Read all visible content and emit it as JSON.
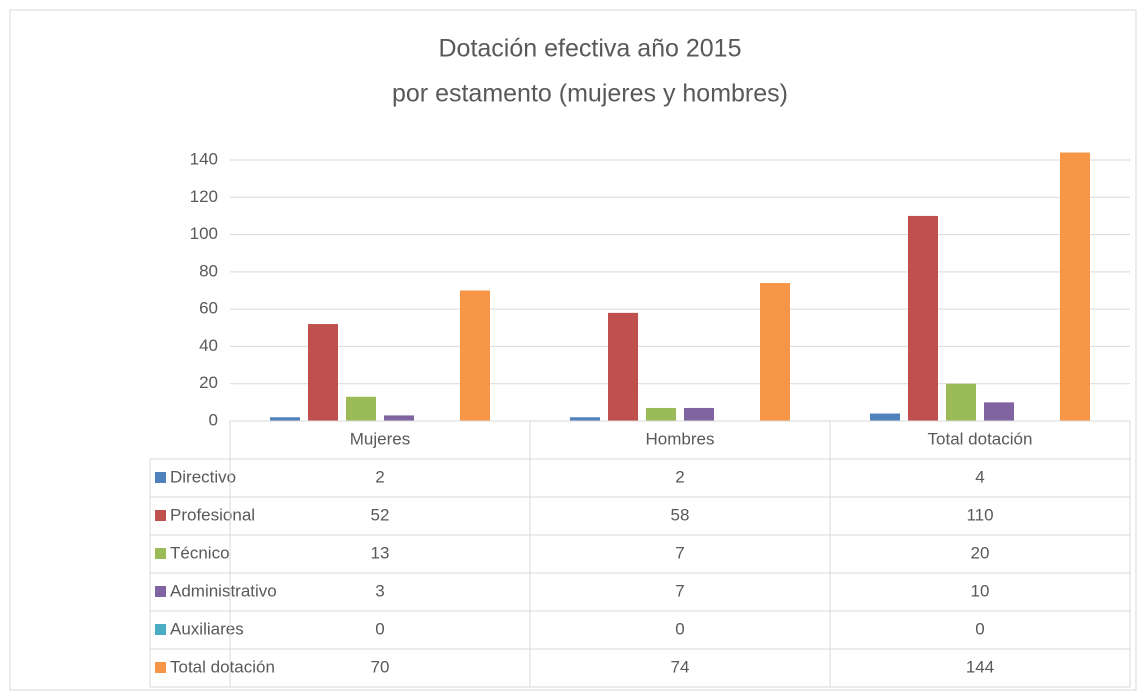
{
  "chart_data": {
    "type": "bar",
    "title": "Dotación efectiva año 2015",
    "subtitle": "por estamento (mujeres y hombres)",
    "categories": [
      "Mujeres",
      "Hombres",
      "Total dotación"
    ],
    "series": [
      {
        "name": "Directivo",
        "color": "#4f81bd",
        "values": [
          2,
          2,
          4
        ]
      },
      {
        "name": "Profesional",
        "color": "#c0504d",
        "values": [
          52,
          58,
          110
        ]
      },
      {
        "name": "Técnico",
        "color": "#9bbb59",
        "values": [
          13,
          7,
          20
        ]
      },
      {
        "name": "Administrativo",
        "color": "#8064a2",
        "values": [
          3,
          7,
          10
        ]
      },
      {
        "name": "Auxiliares",
        "color": "#4bacc6",
        "values": [
          0,
          0,
          0
        ]
      },
      {
        "name": "Total dotación",
        "color": "#f79646",
        "values": [
          70,
          74,
          144
        ]
      }
    ],
    "ylim": [
      0,
      140
    ],
    "yticks": [
      0,
      20,
      40,
      60,
      80,
      100,
      120,
      140
    ],
    "grid": true
  }
}
